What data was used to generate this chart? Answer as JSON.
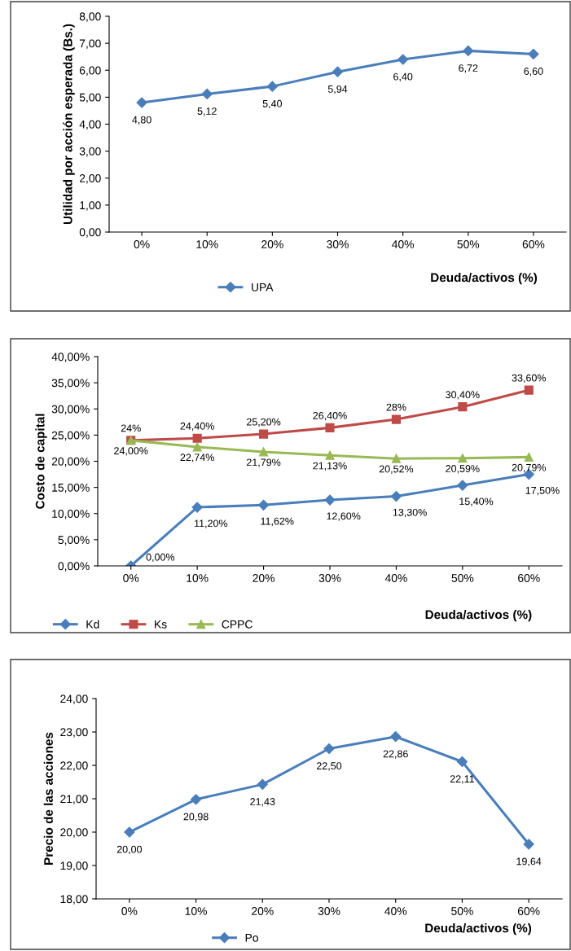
{
  "chart_data": [
    {
      "type": "line",
      "ylabel": "Utilidad por acción esperada (Bs.)",
      "xlabel": "Deuda/activos (%)",
      "categories": [
        "0%",
        "10%",
        "20%",
        "30%",
        "40%",
        "50%",
        "60%"
      ],
      "series": [
        {
          "name": "UPA",
          "color": "#4a7ebb",
          "marker": "diamond",
          "values": [
            4.8,
            5.12,
            5.4,
            5.94,
            6.4,
            6.72,
            6.6
          ],
          "value_labels": [
            "4,80",
            "5,12",
            "5,40",
            "5,94",
            "6,40",
            "6,72",
            "6,60"
          ]
        }
      ],
      "ylim": [
        0,
        8
      ],
      "yticks": [
        {
          "value": 0,
          "label": "0,00"
        },
        {
          "value": 1,
          "label": "1,00"
        },
        {
          "value": 2,
          "label": "2,00"
        },
        {
          "value": 3,
          "label": "3,00"
        },
        {
          "value": 4,
          "label": "4,00"
        },
        {
          "value": 5,
          "label": "5,00"
        },
        {
          "value": 6,
          "label": "6,00"
        },
        {
          "value": 7,
          "label": "7,00"
        },
        {
          "value": 8,
          "label": "8,00"
        }
      ],
      "grid": false,
      "legend": "bottom"
    },
    {
      "type": "line",
      "ylabel": "Costo de capital",
      "xlabel": "Deuda/activos (%)",
      "categories": [
        "0%",
        "10%",
        "20%",
        "30%",
        "40%",
        "50%",
        "60%"
      ],
      "series": [
        {
          "name": "Kd",
          "color": "#4a7ebb",
          "marker": "diamond",
          "values": [
            0.0,
            11.2,
            11.62,
            12.6,
            13.3,
            15.4,
            17.5
          ],
          "value_labels": [
            "0,00%",
            "11,20%",
            "11,62%",
            "12,60%",
            "13,30%",
            "15,40%",
            "17,50%"
          ]
        },
        {
          "name": "Ks",
          "color": "#be4b48",
          "marker": "square",
          "values": [
            24.0,
            24.4,
            25.2,
            26.4,
            28.0,
            30.4,
            33.6
          ],
          "value_labels": [
            "24%",
            "24,40%",
            "25,20%",
            "26,40%",
            "28%",
            "30,40%",
            "33,60%"
          ]
        },
        {
          "name": "CPPC",
          "color": "#98b954",
          "marker": "triangle",
          "values": [
            24.0,
            22.74,
            21.79,
            21.13,
            20.52,
            20.59,
            20.79
          ],
          "value_labels": [
            "24,00%",
            "22,74%",
            "21,79%",
            "21,13%",
            "20,52%",
            "20,59%",
            "20,79%"
          ]
        }
      ],
      "ylim": [
        0,
        40
      ],
      "yticks": [
        {
          "value": 0,
          "label": "0,00%"
        },
        {
          "value": 5,
          "label": "5,00%"
        },
        {
          "value": 10,
          "label": "10,00%"
        },
        {
          "value": 15,
          "label": "15,00%"
        },
        {
          "value": 20,
          "label": "20,00%"
        },
        {
          "value": 25,
          "label": "25,00%"
        },
        {
          "value": 30,
          "label": "30,00%"
        },
        {
          "value": 35,
          "label": "35,00%"
        },
        {
          "value": 40,
          "label": "40,00%"
        }
      ],
      "grid": false,
      "legend": "bottom left"
    },
    {
      "type": "line",
      "ylabel": "Precio de las acciones",
      "xlabel": "Deuda/activos (%)",
      "categories": [
        "0%",
        "10%",
        "20%",
        "30%",
        "40%",
        "50%",
        "60%"
      ],
      "series": [
        {
          "name": "Po",
          "color": "#4a7ebb",
          "marker": "diamond",
          "values": [
            20.0,
            20.98,
            21.43,
            22.5,
            22.86,
            22.11,
            19.64
          ],
          "value_labels": [
            "20,00",
            "20,98",
            "21,43",
            "22,50",
            "22,86",
            "22,11",
            "19,64"
          ]
        }
      ],
      "ylim": [
        18,
        24
      ],
      "yticks": [
        {
          "value": 18,
          "label": "18,00"
        },
        {
          "value": 19,
          "label": "19,00"
        },
        {
          "value": 20,
          "label": "20,00"
        },
        {
          "value": 21,
          "label": "21,00"
        },
        {
          "value": 22,
          "label": "22,00"
        },
        {
          "value": 23,
          "label": "23,00"
        },
        {
          "value": 24,
          "label": "24,00"
        }
      ],
      "grid": false,
      "legend": "bottom"
    }
  ]
}
